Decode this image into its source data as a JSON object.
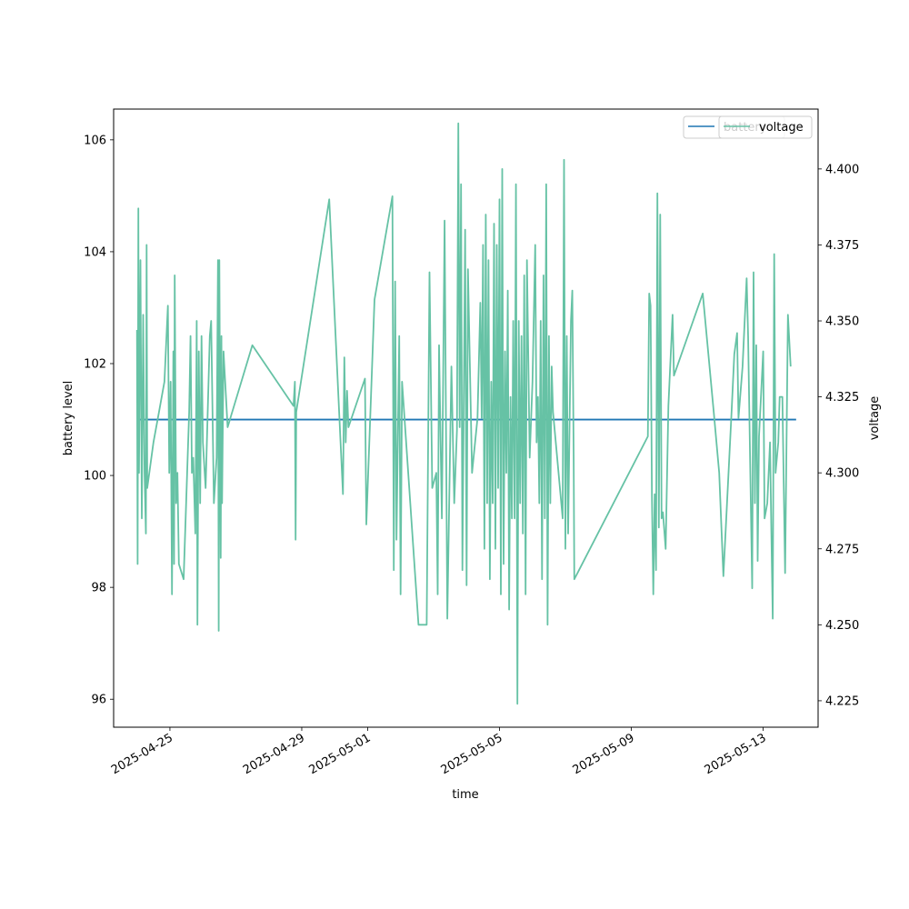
{
  "chart_data": {
    "type": "line",
    "xlabel": "time",
    "ylabel": "battery level",
    "y2label": "voltage",
    "x_ticks": [
      "2025-04-25",
      "2025-04-29",
      "2025-05-01",
      "2025-05-05",
      "2025-05-09",
      "2025-05-13"
    ],
    "xlim": [
      "2025-04-23T07:00",
      "2025-05-14T16:00"
    ],
    "ylim": [
      95.5,
      106.55
    ],
    "y_ticks": [
      96,
      98,
      100,
      102,
      104,
      106
    ],
    "y2lim": [
      4.2163,
      4.4197
    ],
    "y2_ticks": [
      4.225,
      4.25,
      4.275,
      4.3,
      4.325,
      4.35,
      4.375,
      4.4
    ],
    "grid": false,
    "legend_position": "upper right",
    "series": [
      {
        "name": "battery",
        "axis": "left",
        "color": "#1f77b4",
        "x_range": [
          "2025-04-24T00:00",
          "2025-05-14T00:00"
        ],
        "constant_value": 101
      },
      {
        "name": "voltage",
        "axis": "right",
        "color": "#66c2a5",
        "points": [
          [
            "2025-04-24T00:00",
            4.347
          ],
          [
            "2025-04-24T00:30",
            4.27
          ],
          [
            "2025-04-24T01:00",
            4.387
          ],
          [
            "2025-04-24T01:30",
            4.3
          ],
          [
            "2025-04-24T02:30",
            4.37
          ],
          [
            "2025-04-24T03:30",
            4.285
          ],
          [
            "2025-04-24T04:30",
            4.352
          ],
          [
            "2025-04-24T05:30",
            4.3
          ],
          [
            "2025-04-24T06:30",
            4.28
          ],
          [
            "2025-04-24T07:00",
            4.375
          ],
          [
            "2025-04-24T07:30",
            4.295
          ],
          [
            "2025-04-24T12:00",
            4.31
          ],
          [
            "2025-04-24T16:00",
            4.32
          ],
          [
            "2025-04-24T20:00",
            4.33
          ],
          [
            "2025-04-24T22:30",
            4.355
          ],
          [
            "2025-04-24T23:30",
            4.3
          ],
          [
            "2025-04-25T00:30",
            4.33
          ],
          [
            "2025-04-25T01:30",
            4.26
          ],
          [
            "2025-04-25T02:30",
            4.34
          ],
          [
            "2025-04-25T03:00",
            4.27
          ],
          [
            "2025-04-25T03:30",
            4.365
          ],
          [
            "2025-04-25T04:30",
            4.29
          ],
          [
            "2025-04-25T05:30",
            4.3
          ],
          [
            "2025-04-25T06:30",
            4.27
          ],
          [
            "2025-04-25T10:00",
            4.265
          ],
          [
            "2025-04-25T14:00",
            4.32
          ],
          [
            "2025-04-25T15:00",
            4.345
          ],
          [
            "2025-04-25T16:00",
            4.3
          ],
          [
            "2025-04-25T17:00",
            4.305
          ],
          [
            "2025-04-25T18:30",
            4.28
          ],
          [
            "2025-04-25T19:30",
            4.35
          ],
          [
            "2025-04-25T20:00",
            4.25
          ],
          [
            "2025-04-25T21:00",
            4.34
          ],
          [
            "2025-04-25T22:00",
            4.29
          ],
          [
            "2025-04-25T23:00",
            4.345
          ],
          [
            "2025-04-26T00:00",
            4.31
          ],
          [
            "2025-04-26T02:00",
            4.295
          ],
          [
            "2025-04-26T05:00",
            4.345
          ],
          [
            "2025-04-26T06:00",
            4.35
          ],
          [
            "2025-04-26T07:00",
            4.32
          ],
          [
            "2025-04-26T08:00",
            4.29
          ],
          [
            "2025-04-26T10:00",
            4.305
          ],
          [
            "2025-04-26T11:00",
            4.37
          ],
          [
            "2025-04-26T11:30",
            4.248
          ],
          [
            "2025-04-26T12:00",
            4.37
          ],
          [
            "2025-04-26T13:00",
            4.272
          ],
          [
            "2025-04-26T13:30",
            4.345
          ],
          [
            "2025-04-26T14:00",
            4.29
          ],
          [
            "2025-04-26T15:00",
            4.34
          ],
          [
            "2025-04-26T18:00",
            4.315
          ],
          [
            "2025-04-27T12:00",
            4.342
          ],
          [
            "2025-04-28T18:00",
            4.322
          ],
          [
            "2025-04-28T19:00",
            4.33
          ],
          [
            "2025-04-28T19:30",
            4.278
          ],
          [
            "2025-04-28T20:00",
            4.32
          ],
          [
            "2025-04-29T20:00",
            4.39
          ],
          [
            "2025-04-30T06:00",
            4.293
          ],
          [
            "2025-04-30T07:00",
            4.338
          ],
          [
            "2025-04-30T08:00",
            4.31
          ],
          [
            "2025-04-30T09:00",
            4.327
          ],
          [
            "2025-04-30T10:00",
            4.315
          ],
          [
            "2025-04-30T22:00",
            4.331
          ],
          [
            "2025-04-30T23:00",
            4.283
          ],
          [
            "2025-05-01T05:00",
            4.357
          ],
          [
            "2025-05-01T18:00",
            4.391
          ],
          [
            "2025-05-01T19:00",
            4.268
          ],
          [
            "2025-05-01T20:00",
            4.363
          ],
          [
            "2025-05-01T21:00",
            4.278
          ],
          [
            "2025-05-01T23:00",
            4.345
          ],
          [
            "2025-05-02T00:00",
            4.26
          ],
          [
            "2025-05-02T01:00",
            4.33
          ],
          [
            "2025-05-02T13:00",
            4.25
          ],
          [
            "2025-05-02T19:00",
            4.25
          ],
          [
            "2025-05-02T21:00",
            4.366
          ],
          [
            "2025-05-02T23:00",
            4.295
          ],
          [
            "2025-05-03T02:00",
            4.3
          ],
          [
            "2025-05-03T03:00",
            4.26
          ],
          [
            "2025-05-03T04:00",
            4.342
          ],
          [
            "2025-05-03T06:00",
            4.285
          ],
          [
            "2025-05-03T08:00",
            4.383
          ],
          [
            "2025-05-03T10:00",
            4.252
          ],
          [
            "2025-05-03T13:00",
            4.335
          ],
          [
            "2025-05-03T15:00",
            4.29
          ],
          [
            "2025-05-03T17:00",
            4.314
          ],
          [
            "2025-05-03T18:00",
            4.415
          ],
          [
            "2025-05-03T19:00",
            4.315
          ],
          [
            "2025-05-03T20:00",
            4.395
          ],
          [
            "2025-05-03T21:00",
            4.268
          ],
          [
            "2025-05-03T23:00",
            4.38
          ],
          [
            "2025-05-04T00:00",
            4.263
          ],
          [
            "2025-05-04T01:00",
            4.367
          ],
          [
            "2025-05-04T04:00",
            4.3
          ],
          [
            "2025-05-04T08:00",
            4.318
          ],
          [
            "2025-05-04T10:00",
            4.356
          ],
          [
            "2025-05-04T11:00",
            4.318
          ],
          [
            "2025-05-04T12:00",
            4.375
          ],
          [
            "2025-05-04T13:00",
            4.275
          ],
          [
            "2025-05-04T14:00",
            4.385
          ],
          [
            "2025-05-04T15:00",
            4.29
          ],
          [
            "2025-05-04T16:00",
            4.37
          ],
          [
            "2025-05-04T17:00",
            4.265
          ],
          [
            "2025-05-04T18:00",
            4.33
          ],
          [
            "2025-05-04T19:00",
            4.29
          ],
          [
            "2025-05-04T20:00",
            4.382
          ],
          [
            "2025-05-04T21:00",
            4.275
          ],
          [
            "2025-05-04T22:00",
            4.375
          ],
          [
            "2025-05-04T23:00",
            4.295
          ],
          [
            "2025-05-05T00:00",
            4.39
          ],
          [
            "2025-05-05T01:00",
            4.26
          ],
          [
            "2025-05-05T02:00",
            4.4
          ],
          [
            "2025-05-05T03:00",
            4.27
          ],
          [
            "2025-05-05T04:00",
            4.34
          ],
          [
            "2025-05-05T05:00",
            4.3
          ],
          [
            "2025-05-05T06:00",
            4.36
          ],
          [
            "2025-05-05T07:00",
            4.255
          ],
          [
            "2025-05-05T08:00",
            4.325
          ],
          [
            "2025-05-05T09:00",
            4.285
          ],
          [
            "2025-05-05T10:00",
            4.35
          ],
          [
            "2025-05-05T11:00",
            4.285
          ],
          [
            "2025-05-05T12:00",
            4.395
          ],
          [
            "2025-05-05T13:00",
            4.224
          ],
          [
            "2025-05-05T14:00",
            4.35
          ],
          [
            "2025-05-05T15:00",
            4.29
          ],
          [
            "2025-05-05T16:00",
            4.345
          ],
          [
            "2025-05-05T17:00",
            4.28
          ],
          [
            "2025-05-05T18:00",
            4.365
          ],
          [
            "2025-05-05T19:00",
            4.26
          ],
          [
            "2025-05-05T20:00",
            4.37
          ],
          [
            "2025-05-05T22:00",
            4.305
          ],
          [
            "2025-05-06T00:00",
            4.33
          ],
          [
            "2025-05-06T02:00",
            4.375
          ],
          [
            "2025-05-06T03:00",
            4.31
          ],
          [
            "2025-05-06T04:00",
            4.325
          ],
          [
            "2025-05-06T05:00",
            4.29
          ],
          [
            "2025-05-06T06:00",
            4.35
          ],
          [
            "2025-05-06T07:00",
            4.265
          ],
          [
            "2025-05-06T08:00",
            4.365
          ],
          [
            "2025-05-06T09:00",
            4.285
          ],
          [
            "2025-05-06T10:00",
            4.395
          ],
          [
            "2025-05-06T11:00",
            4.25
          ],
          [
            "2025-05-06T12:00",
            4.345
          ],
          [
            "2025-05-06T13:00",
            4.29
          ],
          [
            "2025-05-06T14:00",
            4.335
          ],
          [
            "2025-05-06T15:00",
            4.32
          ],
          [
            "2025-05-06T22:00",
            4.285
          ],
          [
            "2025-05-06T23:00",
            4.403
          ],
          [
            "2025-05-07T00:00",
            4.275
          ],
          [
            "2025-05-07T01:00",
            4.345
          ],
          [
            "2025-05-07T02:00",
            4.28
          ],
          [
            "2025-05-07T04:00",
            4.35
          ],
          [
            "2025-05-07T05:00",
            4.36
          ],
          [
            "2025-05-07T06:00",
            4.305
          ],
          [
            "2025-05-07T06:30",
            4.265
          ],
          [
            "2025-05-09T12:00",
            4.312
          ],
          [
            "2025-05-09T13:00",
            4.359
          ],
          [
            "2025-05-09T14:00",
            4.355
          ],
          [
            "2025-05-09T15:00",
            4.292
          ],
          [
            "2025-05-09T16:00",
            4.26
          ],
          [
            "2025-05-09T17:00",
            4.293
          ],
          [
            "2025-05-09T18:00",
            4.268
          ],
          [
            "2025-05-09T19:00",
            4.392
          ],
          [
            "2025-05-09T20:00",
            4.282
          ],
          [
            "2025-05-09T21:00",
            4.385
          ],
          [
            "2025-05-09T22:00",
            4.285
          ],
          [
            "2025-05-09T23:00",
            4.287
          ],
          [
            "2025-05-10T01:00",
            4.275
          ],
          [
            "2025-05-10T03:00",
            4.322
          ],
          [
            "2025-05-10T06:00",
            4.352
          ],
          [
            "2025-05-10T07:00",
            4.332
          ],
          [
            "2025-05-11T04:00",
            4.359
          ],
          [
            "2025-05-11T12:00",
            4.32
          ],
          [
            "2025-05-11T16:00",
            4.3
          ],
          [
            "2025-05-11T19:00",
            4.266
          ],
          [
            "2025-05-12T01:00",
            4.32
          ],
          [
            "2025-05-12T03:00",
            4.339
          ],
          [
            "2025-05-12T05:00",
            4.346
          ],
          [
            "2025-05-12T06:00",
            4.318
          ],
          [
            "2025-05-12T09:00",
            4.335
          ],
          [
            "2025-05-12T12:00",
            4.364
          ],
          [
            "2025-05-12T13:00",
            4.345
          ],
          [
            "2025-05-12T16:00",
            4.262
          ],
          [
            "2025-05-12T17:00",
            4.366
          ],
          [
            "2025-05-12T18:00",
            4.29
          ],
          [
            "2025-05-12T19:00",
            4.342
          ],
          [
            "2025-05-12T20:00",
            4.271
          ],
          [
            "2025-05-12T21:00",
            4.312
          ],
          [
            "2025-05-13T00:00",
            4.34
          ],
          [
            "2025-05-13T01:00",
            4.285
          ],
          [
            "2025-05-13T03:00",
            4.29
          ],
          [
            "2025-05-13T05:00",
            4.31
          ],
          [
            "2025-05-13T06:00",
            4.28
          ],
          [
            "2025-05-13T07:00",
            4.252
          ],
          [
            "2025-05-13T08:00",
            4.372
          ],
          [
            "2025-05-13T09:00",
            4.3
          ],
          [
            "2025-05-13T11:00",
            4.31
          ],
          [
            "2025-05-13T12:00",
            4.325
          ],
          [
            "2025-05-13T14:00",
            4.325
          ],
          [
            "2025-05-13T16:00",
            4.267
          ],
          [
            "2025-05-13T18:00",
            4.352
          ],
          [
            "2025-05-13T20:00",
            4.335
          ]
        ]
      }
    ]
  }
}
